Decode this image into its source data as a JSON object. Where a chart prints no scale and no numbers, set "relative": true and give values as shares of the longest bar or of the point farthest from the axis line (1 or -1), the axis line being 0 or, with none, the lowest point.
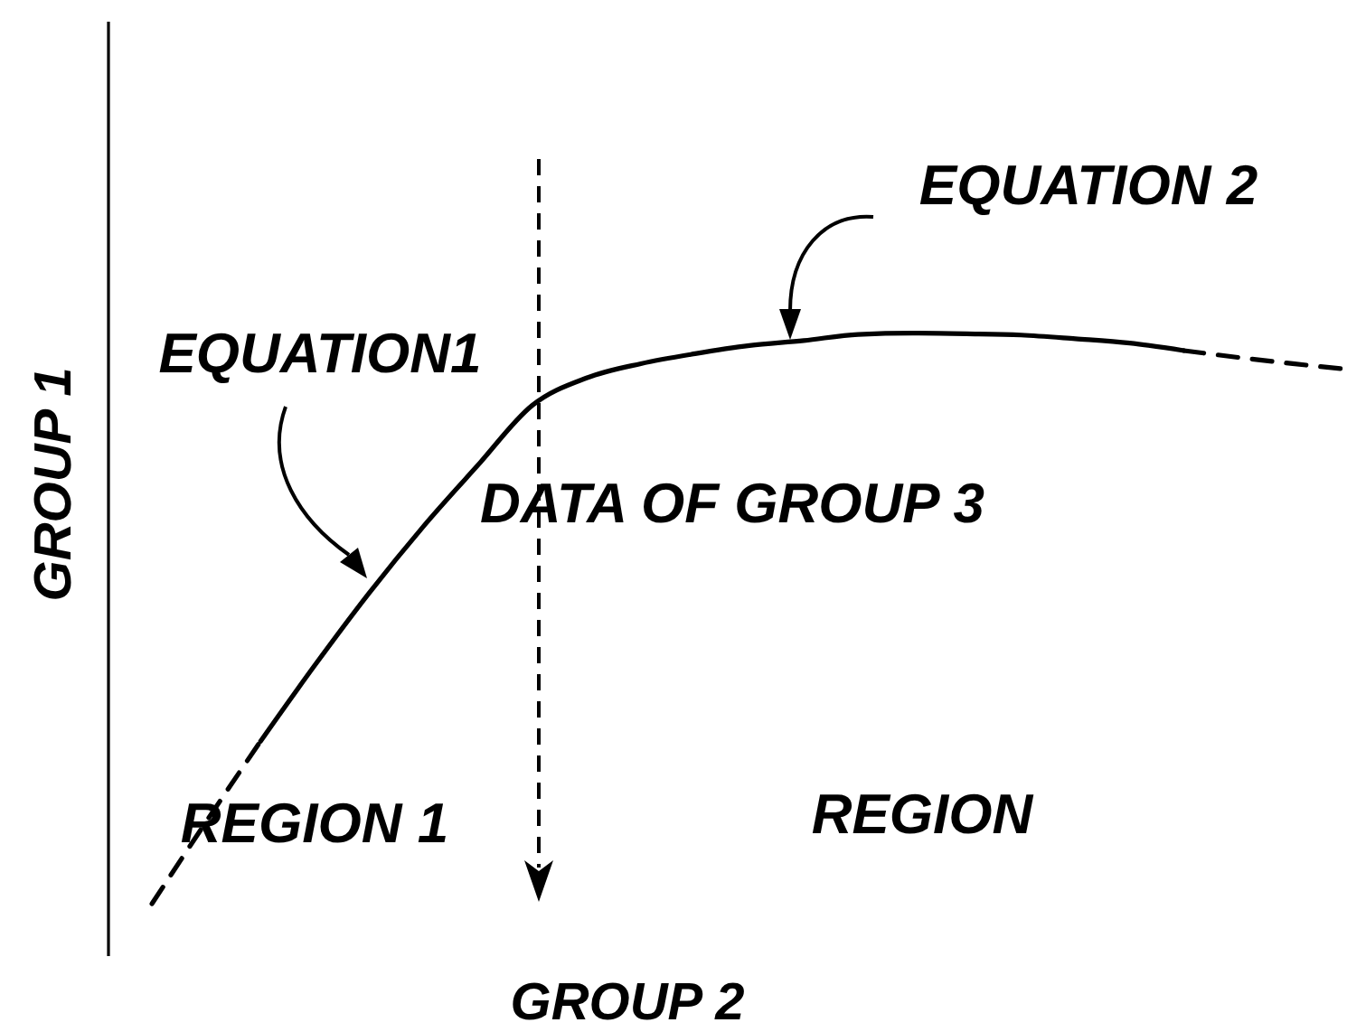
{
  "chart_data": {
    "type": "line",
    "xlabel": "GROUP 2",
    "ylabel": "GROUP 1",
    "annotations": [
      "EQUATION1",
      "EQUATION 2",
      "DATA OF GROUP 3",
      "REGION 1",
      "REGION"
    ],
    "categories": [
      null,
      null,
      null,
      null,
      null,
      null,
      null,
      null,
      null,
      null,
      null,
      null,
      null,
      null,
      null,
      null,
      null,
      null,
      null,
      null,
      null,
      null,
      null
    ],
    "relative": true,
    "series": [
      {
        "color": "#000000",
        "line_style": "dashed",
        "values": [
          0.084,
          0.216,
          0.345,
          null,
          null,
          null,
          null,
          null,
          null,
          null,
          null,
          null,
          null,
          null,
          null,
          null,
          null,
          null,
          null,
          null,
          null,
          null,
          null
        ]
      },
      {
        "color": "#000000",
        "line_style": "solid",
        "values": [
          null,
          null,
          0.345,
          0.467,
          0.583,
          0.69,
          0.788,
          0.884,
          0.928,
          0.951,
          0.967,
          0.98,
          0.988,
          0.998,
          1,
          0.999,
          0.997,
          0.991,
          0.984,
          0.972,
          null,
          null,
          null
        ]
      },
      {
        "color": "#000000",
        "line_style": "dashed",
        "values": [
          null,
          null,
          null,
          null,
          null,
          null,
          null,
          null,
          null,
          null,
          null,
          null,
          null,
          null,
          null,
          null,
          null,
          null,
          null,
          0.972,
          0.961,
          0.951,
          0.942
        ]
      }
    ]
  }
}
